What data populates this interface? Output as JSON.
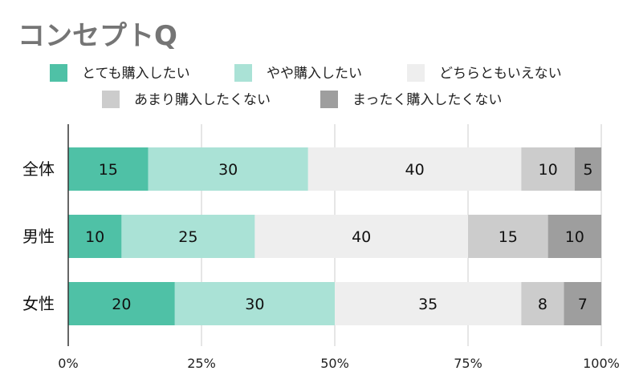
{
  "chart_data": {
    "type": "bar",
    "orientation": "horizontal",
    "stacked": true,
    "title": "コンセプトQ",
    "categories": [
      "全体",
      "男性",
      "女性"
    ],
    "series": [
      {
        "name": "とても購入したい",
        "color": "#4fc1a6",
        "values": [
          15,
          10,
          20
        ]
      },
      {
        "name": "やや購入したい",
        "color": "#aae2d6",
        "values": [
          30,
          25,
          30
        ]
      },
      {
        "name": "どちらともいえない",
        "color": "#eeeeee",
        "values": [
          40,
          40,
          35
        ]
      },
      {
        "name": "あまり購入したくない",
        "color": "#cccccc",
        "values": [
          10,
          15,
          8
        ]
      },
      {
        "name": "まったく購入したくない",
        "color": "#9e9e9e",
        "values": [
          5,
          10,
          7
        ]
      }
    ],
    "xlim": [
      0,
      100
    ],
    "x_ticks": [
      "0%",
      "25%",
      "50%",
      "75%",
      "100%"
    ],
    "grid": true,
    "legend_position": "top"
  }
}
